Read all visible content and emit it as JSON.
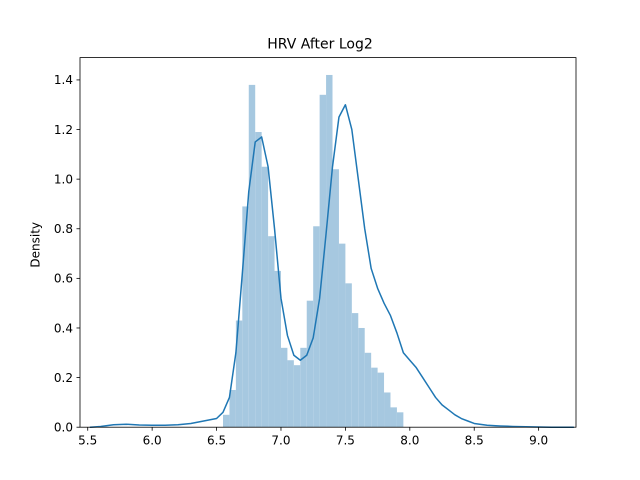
{
  "chart_data": {
    "type": "histogram_kde",
    "title": "HRV After Log2",
    "xlabel": "",
    "ylabel": "Density",
    "xlim": [
      5.44,
      9.29
    ],
    "ylim": [
      0,
      1.49
    ],
    "xticks": [
      5.5,
      6.0,
      6.5,
      7.0,
      7.5,
      8.0,
      8.5,
      9.0
    ],
    "xtick_labels": [
      "5.5",
      "6.0",
      "6.5",
      "7.0",
      "7.5",
      "8.0",
      "8.5",
      "9.0"
    ],
    "yticks": [
      0.0,
      0.2,
      0.4,
      0.6,
      0.8,
      1.0,
      1.2,
      1.4
    ],
    "ytick_labels": [
      "0.0",
      "0.2",
      "0.4",
      "0.6",
      "0.8",
      "1.0",
      "1.2",
      "1.4"
    ],
    "grid": false,
    "hist_color": "#a6c8e0",
    "kde_color": "#1f77b4",
    "histogram": {
      "bin_width": 0.05,
      "bins": [
        {
          "x0": 6.55,
          "height": 0.05
        },
        {
          "x0": 6.6,
          "height": 0.15
        },
        {
          "x0": 6.65,
          "height": 0.43
        },
        {
          "x0": 6.7,
          "height": 0.89
        },
        {
          "x0": 6.75,
          "height": 1.38
        },
        {
          "x0": 6.8,
          "height": 1.19
        },
        {
          "x0": 6.85,
          "height": 1.05
        },
        {
          "x0": 6.9,
          "height": 0.77
        },
        {
          "x0": 6.95,
          "height": 0.63
        },
        {
          "x0": 7.0,
          "height": 0.32
        },
        {
          "x0": 7.05,
          "height": 0.27
        },
        {
          "x0": 7.1,
          "height": 0.25
        },
        {
          "x0": 7.15,
          "height": 0.32
        },
        {
          "x0": 7.2,
          "height": 0.51
        },
        {
          "x0": 7.25,
          "height": 0.81
        },
        {
          "x0": 7.3,
          "height": 1.34
        },
        {
          "x0": 7.35,
          "height": 1.42
        },
        {
          "x0": 7.4,
          "height": 1.04
        },
        {
          "x0": 7.45,
          "height": 0.74
        },
        {
          "x0": 7.5,
          "height": 0.58
        },
        {
          "x0": 7.55,
          "height": 0.46
        },
        {
          "x0": 7.6,
          "height": 0.4
        },
        {
          "x0": 7.65,
          "height": 0.3
        },
        {
          "x0": 7.7,
          "height": 0.24
        },
        {
          "x0": 7.75,
          "height": 0.22
        },
        {
          "x0": 7.8,
          "height": 0.14
        },
        {
          "x0": 7.85,
          "height": 0.08
        },
        {
          "x0": 7.9,
          "height": 0.06
        }
      ]
    },
    "kde": {
      "x": [
        5.52,
        5.6,
        5.7,
        5.8,
        5.9,
        6.0,
        6.1,
        6.2,
        6.3,
        6.4,
        6.5,
        6.55,
        6.6,
        6.65,
        6.7,
        6.75,
        6.8,
        6.85,
        6.9,
        6.95,
        7.0,
        7.05,
        7.1,
        7.15,
        7.2,
        7.25,
        7.3,
        7.35,
        7.4,
        7.45,
        7.5,
        7.55,
        7.6,
        7.65,
        7.7,
        7.75,
        7.8,
        7.85,
        7.9,
        7.95,
        8.0,
        8.05,
        8.1,
        8.15,
        8.2,
        8.25,
        8.3,
        8.35,
        8.4,
        8.45,
        8.5,
        8.6,
        8.7,
        8.8,
        8.9,
        9.0,
        9.1,
        9.27
      ],
      "y": [
        0.0,
        0.003,
        0.01,
        0.012,
        0.009,
        0.008,
        0.008,
        0.01,
        0.015,
        0.025,
        0.035,
        0.06,
        0.12,
        0.3,
        0.62,
        0.95,
        1.15,
        1.17,
        1.05,
        0.8,
        0.52,
        0.37,
        0.29,
        0.27,
        0.29,
        0.36,
        0.52,
        0.78,
        1.05,
        1.25,
        1.3,
        1.2,
        1.0,
        0.8,
        0.64,
        0.56,
        0.5,
        0.45,
        0.38,
        0.3,
        0.27,
        0.24,
        0.2,
        0.16,
        0.12,
        0.09,
        0.07,
        0.05,
        0.035,
        0.025,
        0.015,
        0.008,
        0.005,
        0.003,
        0.002,
        0.001,
        0.0,
        0.0
      ]
    }
  }
}
